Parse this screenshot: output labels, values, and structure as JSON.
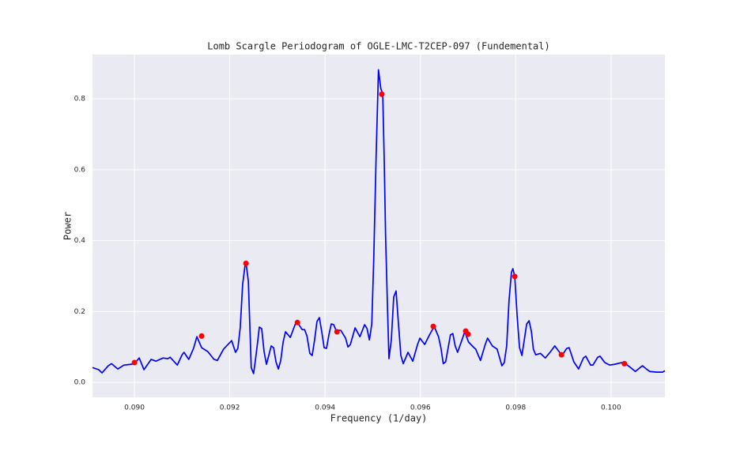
{
  "chart_data": {
    "type": "line",
    "title": "Lomb Scargle Periodogram of OGLE-LMC-T2CEP-097 (Fundemental)",
    "x_label": "Frequency (1/day)",
    "y_label": "Power",
    "xlim": [
      0.08912,
      0.10113
    ],
    "ylim": [
      -0.042,
      0.925
    ],
    "xticks": [
      {
        "value": 0.09,
        "label": "0.090"
      },
      0.092,
      0.094,
      0.096,
      0.098,
      {
        "value": 0.1,
        "label": "0.100"
      }
    ],
    "yticks": [
      {
        "value": 0,
        "label": "0.0"
      },
      0.2,
      0.4,
      0.6,
      0.8
    ],
    "grid": true,
    "series": [
      {
        "type": "line",
        "color": "#0000ff",
        "x": [
          0.08912,
          0.08925,
          0.08932,
          0.08945,
          0.08952,
          0.08965,
          0.08978,
          0.08992,
          0.09,
          0.0901,
          0.0902,
          0.09035,
          0.09045,
          0.0906,
          0.0907,
          0.09075,
          0.0909,
          0.091,
          0.09104,
          0.09114,
          0.09124,
          0.09131,
          0.09141,
          0.09154,
          0.09167,
          0.09174,
          0.09187,
          0.09204,
          0.09212,
          0.09217,
          0.09222,
          0.09227,
          0.09232,
          0.09235,
          0.09239,
          0.09242,
          0.09245,
          0.0925,
          0.09254,
          0.09259,
          0.09262,
          0.09267,
          0.09272,
          0.09277,
          0.09287,
          0.09292,
          0.09297,
          0.09302,
          0.09307,
          0.09312,
          0.09317,
          0.09327,
          0.09337,
          0.09342,
          0.09352,
          0.09357,
          0.09362,
          0.09368,
          0.09373,
          0.09378,
          0.09383,
          0.09388,
          0.09393,
          0.09398,
          0.09403,
          0.09408,
          0.09413,
          0.09418,
          0.09423,
          0.09433,
          0.09443,
          0.09448,
          0.09453,
          0.09463,
          0.09473,
          0.09483,
          0.09488,
          0.09493,
          0.09498,
          0.09502,
          0.09507,
          0.09512,
          0.09517,
          0.09521,
          0.09524,
          0.09527,
          0.09531,
          0.09534,
          0.09539,
          0.09544,
          0.09549,
          0.09554,
          0.09559,
          0.09564,
          0.09574,
          0.09584,
          0.09594,
          0.09599,
          0.09609,
          0.09619,
          0.09629,
          0.09638,
          0.09643,
          0.09648,
          0.09653,
          0.09663,
          0.09668,
          0.09673,
          0.09678,
          0.09688,
          0.09693,
          0.09701,
          0.09711,
          0.09716,
          0.09726,
          0.09736,
          0.09741,
          0.09751,
          0.09761,
          0.09771,
          0.09776,
          0.09781,
          0.09786,
          0.09791,
          0.09794,
          0.09798,
          0.09803,
          0.09808,
          0.09813,
          0.09818,
          0.09823,
          0.09828,
          0.09833,
          0.09837,
          0.09842,
          0.09852,
          0.09862,
          0.09872,
          0.09882,
          0.09892,
          0.09897,
          0.09907,
          0.09912,
          0.09922,
          0.09932,
          0.09942,
          0.09947,
          0.09957,
          0.09962,
          0.09972,
          0.09977,
          0.09987,
          0.09997,
          0.10007,
          0.10022,
          0.10032,
          0.10041,
          0.10051,
          0.10061,
          0.10066,
          0.10076,
          0.10081,
          0.10096,
          0.10108,
          0.10113
        ],
        "values": [
          0.042,
          0.036,
          0.027,
          0.047,
          0.053,
          0.038,
          0.049,
          0.051,
          0.053,
          0.069,
          0.036,
          0.065,
          0.06,
          0.069,
          0.067,
          0.071,
          0.049,
          0.078,
          0.085,
          0.065,
          0.096,
          0.129,
          0.098,
          0.087,
          0.065,
          0.062,
          0.094,
          0.118,
          0.085,
          0.096,
          0.155,
          0.276,
          0.33,
          0.328,
          0.285,
          0.165,
          0.042,
          0.025,
          0.065,
          0.12,
          0.156,
          0.152,
          0.087,
          0.051,
          0.103,
          0.098,
          0.058,
          0.038,
          0.062,
          0.114,
          0.143,
          0.127,
          0.163,
          0.169,
          0.149,
          0.149,
          0.131,
          0.082,
          0.076,
          0.12,
          0.172,
          0.183,
          0.143,
          0.098,
          0.096,
          0.134,
          0.165,
          0.163,
          0.147,
          0.147,
          0.125,
          0.1,
          0.107,
          0.154,
          0.129,
          0.163,
          0.152,
          0.12,
          0.165,
          0.343,
          0.633,
          0.882,
          0.829,
          0.813,
          0.633,
          0.41,
          0.209,
          0.067,
          0.12,
          0.241,
          0.258,
          0.165,
          0.076,
          0.053,
          0.085,
          0.06,
          0.107,
          0.125,
          0.107,
          0.134,
          0.158,
          0.129,
          0.098,
          0.053,
          0.058,
          0.134,
          0.138,
          0.103,
          0.085,
          0.123,
          0.143,
          0.114,
          0.1,
          0.094,
          0.062,
          0.107,
          0.125,
          0.103,
          0.094,
          0.047,
          0.056,
          0.103,
          0.232,
          0.31,
          0.321,
          0.299,
          0.187,
          0.098,
          0.076,
          0.12,
          0.165,
          0.174,
          0.143,
          0.094,
          0.078,
          0.082,
          0.069,
          0.085,
          0.103,
          0.085,
          0.076,
          0.096,
          0.098,
          0.058,
          0.038,
          0.069,
          0.074,
          0.049,
          0.049,
          0.071,
          0.074,
          0.056,
          0.049,
          0.051,
          0.056,
          0.051,
          0.042,
          0.031,
          0.042,
          0.047,
          0.036,
          0.031,
          0.029,
          0.029,
          0.033
        ]
      },
      {
        "type": "scatter",
        "color": "#ff0000",
        "x": [
          0.09,
          0.09141,
          0.09234,
          0.09342,
          0.09425,
          0.09519,
          0.09627,
          0.09695,
          0.097,
          0.09798,
          0.09896,
          0.10028
        ],
        "values": [
          0.056,
          0.131,
          0.336,
          0.169,
          0.143,
          0.813,
          0.158,
          0.145,
          0.136,
          0.299,
          0.078,
          0.053
        ]
      }
    ]
  }
}
